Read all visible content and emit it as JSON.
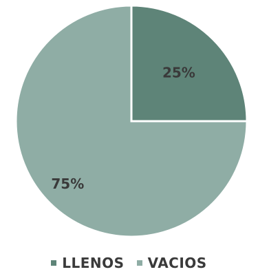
{
  "chart_data": {
    "type": "pie",
    "title": "",
    "slices": [
      {
        "name": "LLENOS",
        "value": 25,
        "label": "25%",
        "color": "#5e8478"
      },
      {
        "name": "VACIOS",
        "value": 75,
        "label": "75%",
        "color": "#8fada5"
      }
    ],
    "start_angle_deg": 0,
    "direction": "clockwise",
    "legend_placement": "bottom",
    "separator_color": "#ffffff"
  }
}
